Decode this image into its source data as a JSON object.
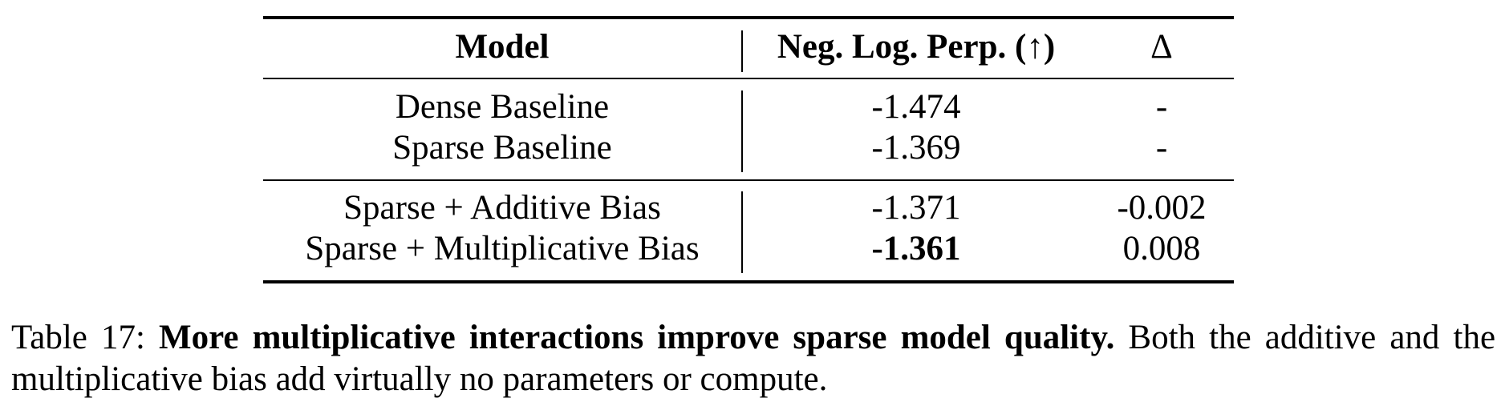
{
  "table": {
    "headers": {
      "model": "Model",
      "metric": "Neg. Log. Perp. (↑)",
      "delta": "Δ"
    },
    "group1": [
      {
        "model": "Dense Baseline",
        "metric": "-1.474",
        "delta": "-"
      },
      {
        "model": "Sparse Baseline",
        "metric": "-1.369",
        "delta": "-"
      }
    ],
    "group2": [
      {
        "model": "Sparse + Additive Bias",
        "metric": "-1.371",
        "delta": "-0.002"
      },
      {
        "model": "Sparse + Multiplicative Bias",
        "metric": "-1.361",
        "metric_bold": true,
        "delta": "0.008"
      }
    ]
  },
  "caption": {
    "label": "Table 17:",
    "title": "More multiplicative interactions improve sparse model quality.",
    "body": "Both the additive and the multiplicative bias add virtually no parameters or compute."
  }
}
